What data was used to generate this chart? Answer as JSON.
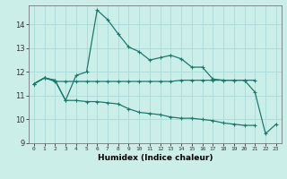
{
  "xlabel": "Humidex (Indice chaleur)",
  "background_color": "#cceee8",
  "grid_color": "#aadddd",
  "line_color": "#1a7a6e",
  "xlim": [
    -0.5,
    23.5
  ],
  "ylim": [
    9,
    14.8
  ],
  "yticks": [
    9,
    10,
    11,
    12,
    13,
    14
  ],
  "xticks": [
    0,
    1,
    2,
    3,
    4,
    5,
    6,
    7,
    8,
    9,
    10,
    11,
    12,
    13,
    14,
    15,
    16,
    17,
    18,
    19,
    20,
    21,
    22,
    23
  ],
  "series1_x": [
    0,
    1,
    2,
    3,
    4,
    5,
    6,
    7,
    8,
    9,
    10,
    11,
    12,
    13,
    14,
    15,
    16,
    17,
    18,
    19,
    20,
    21
  ],
  "series1_y": [
    11.5,
    11.75,
    11.6,
    11.6,
    11.6,
    11.6,
    11.6,
    11.6,
    11.6,
    11.6,
    11.6,
    11.6,
    11.6,
    11.6,
    11.65,
    11.65,
    11.65,
    11.65,
    11.65,
    11.65,
    11.65,
    11.65
  ],
  "series2_x": [
    0,
    1,
    2,
    3,
    4,
    5,
    6,
    7,
    8,
    9,
    10,
    11,
    12,
    13,
    14,
    15,
    16,
    17,
    18,
    19,
    20,
    21,
    22,
    23
  ],
  "series2_y": [
    11.5,
    11.75,
    11.65,
    10.8,
    11.85,
    12.0,
    14.6,
    14.2,
    13.6,
    13.05,
    12.85,
    12.5,
    12.6,
    12.7,
    12.55,
    12.2,
    12.2,
    11.7,
    11.65,
    11.65,
    11.65,
    11.15,
    9.4,
    9.8
  ],
  "series3_x": [
    0,
    1,
    2,
    3,
    4,
    5,
    6,
    7,
    8,
    9,
    10,
    11,
    12,
    13,
    14,
    15,
    16,
    17,
    18,
    19,
    20,
    21
  ],
  "series3_y": [
    11.5,
    11.75,
    11.65,
    10.8,
    10.8,
    10.75,
    10.75,
    10.7,
    10.65,
    10.45,
    10.3,
    10.25,
    10.2,
    10.1,
    10.05,
    10.05,
    10.0,
    9.95,
    9.85,
    9.8,
    9.75,
    9.75
  ]
}
